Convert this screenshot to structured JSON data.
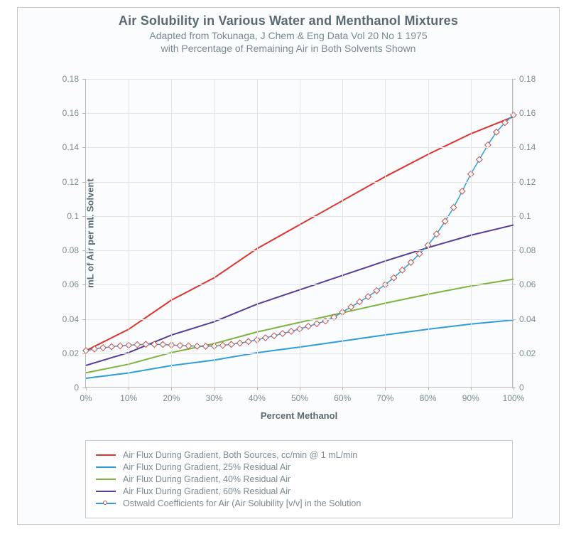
{
  "chart": {
    "type": "line",
    "title": "Air Solubility in Various Water and Menthanol Mixtures",
    "subtitle1": "Adapted from Tokunaga, J Chem & Eng Data Vol 20 No 1 1975",
    "subtitle2": "with Percentage of Remaining Air in Both Solvents Shown",
    "title_fontsize": 18,
    "subtitle_fontsize": 14,
    "title_color": "#5a6a72",
    "subtitle_color": "#7a8a92",
    "background_color": "#fafcfd",
    "border_color": "#c8c8c8",
    "grid_color": "#e4e4e4",
    "axis_color": "#b8b8b8",
    "tick_font_color": "#7a8a92",
    "tick_fontsize": 12,
    "label_fontsize": 13,
    "x_label": "Percent Methanol",
    "y_label": "mL of Air per mL Solvent",
    "xlim": [
      0,
      100
    ],
    "ylim_left": [
      0,
      0.18
    ],
    "ylim_right": [
      0,
      0.18
    ],
    "x_ticks": [
      "0%",
      "10%",
      "20%",
      "30%",
      "40%",
      "50%",
      "60%",
      "70%",
      "80%",
      "90%",
      "100%"
    ],
    "x_tick_values": [
      0,
      10,
      20,
      30,
      40,
      50,
      60,
      70,
      80,
      90,
      100
    ],
    "y_ticks_left": [
      "0",
      "0.02",
      "0.04",
      "0.06",
      "0.08",
      "0.1",
      "0.12",
      "0.14",
      "0.16",
      "0.18"
    ],
    "y_ticks_right": [
      "0",
      "0.02",
      "0.04",
      "0.06",
      "0.08",
      "0.1",
      "0.12",
      "0.14",
      "0.16",
      "0.18"
    ],
    "y_tick_values": [
      0,
      0.02,
      0.04,
      0.06,
      0.08,
      0.1,
      0.12,
      0.14,
      0.16,
      0.18
    ],
    "series": [
      {
        "name": "Air Flux During Gradient, Both Sources, cc/min @ 1 mL/min",
        "color": "#e0322b",
        "line_width": 2,
        "marker": "none",
        "x": [
          0,
          10,
          20,
          30,
          40,
          50,
          60,
          70,
          80,
          90,
          100
        ],
        "y": [
          0.0215,
          0.034,
          0.051,
          0.064,
          0.081,
          0.095,
          0.109,
          0.123,
          0.136,
          0.148,
          0.158
        ]
      },
      {
        "name": "Air Flux During Gradient, 25% Residual Air",
        "color": "#2f9ed8",
        "line_width": 2,
        "marker": "none",
        "x": [
          0,
          10,
          20,
          30,
          40,
          50,
          60,
          70,
          80,
          90,
          100
        ],
        "y": [
          0.0054,
          0.0085,
          0.0128,
          0.016,
          0.0203,
          0.0236,
          0.0271,
          0.0307,
          0.034,
          0.037,
          0.0394
        ]
      },
      {
        "name": "Air Flux During Gradient, 40% Residual Air",
        "color": "#7fb441",
        "line_width": 2,
        "marker": "none",
        "x": [
          0,
          10,
          20,
          30,
          40,
          50,
          60,
          70,
          80,
          90,
          100
        ],
        "y": [
          0.0086,
          0.0136,
          0.0204,
          0.0256,
          0.0324,
          0.038,
          0.0436,
          0.0492,
          0.0544,
          0.0592,
          0.0632
        ]
      },
      {
        "name": "Air Flux During Gradient, 60% Residual Air",
        "color": "#5a3c9a",
        "line_width": 2,
        "marker": "none",
        "x": [
          0,
          10,
          20,
          30,
          40,
          50,
          60,
          70,
          80,
          90,
          100
        ],
        "y": [
          0.0129,
          0.0204,
          0.0306,
          0.0384,
          0.0486,
          0.057,
          0.0654,
          0.0738,
          0.0816,
          0.0888,
          0.0948
        ]
      },
      {
        "name": "Ostwald Coefficients for Air (Air Solubility [v/v] in the Solution",
        "color": "#2f9ed8",
        "marker_border_color": "#c0504d",
        "marker_fill": "#ffffff",
        "marker": "diamond",
        "marker_size": 4,
        "line_width": 1.5,
        "x": [
          0,
          2,
          4,
          6,
          8,
          10,
          12,
          14,
          16,
          18,
          20,
          22,
          24,
          26,
          28,
          30,
          32,
          34,
          36,
          38,
          40,
          42,
          44,
          46,
          48,
          50,
          52,
          54,
          56,
          58,
          60,
          62,
          64,
          66,
          68,
          70,
          72,
          74,
          76,
          78,
          80,
          82,
          84,
          86,
          88,
          90,
          92,
          94,
          96,
          98,
          100
        ],
        "y": [
          0.0215,
          0.0225,
          0.0232,
          0.0238,
          0.0243,
          0.0247,
          0.025,
          0.0252,
          0.0252,
          0.0251,
          0.0248,
          0.0245,
          0.0243,
          0.0241,
          0.0241,
          0.0242,
          0.0246,
          0.0252,
          0.0259,
          0.0268,
          0.0278,
          0.029,
          0.0302,
          0.0315,
          0.0328,
          0.0342,
          0.0357,
          0.0372,
          0.0388,
          0.041,
          0.044,
          0.047,
          0.05,
          0.053,
          0.0565,
          0.06,
          0.064,
          0.0685,
          0.073,
          0.078,
          0.083,
          0.0895,
          0.097,
          0.105,
          0.1145,
          0.1245,
          0.133,
          0.1415,
          0.149,
          0.1545,
          0.159
        ]
      }
    ],
    "legend": {
      "border_color": "#c8c8c8",
      "background": "#ffffff",
      "font_color": "#7a8a92",
      "fontsize": 12.5
    }
  }
}
